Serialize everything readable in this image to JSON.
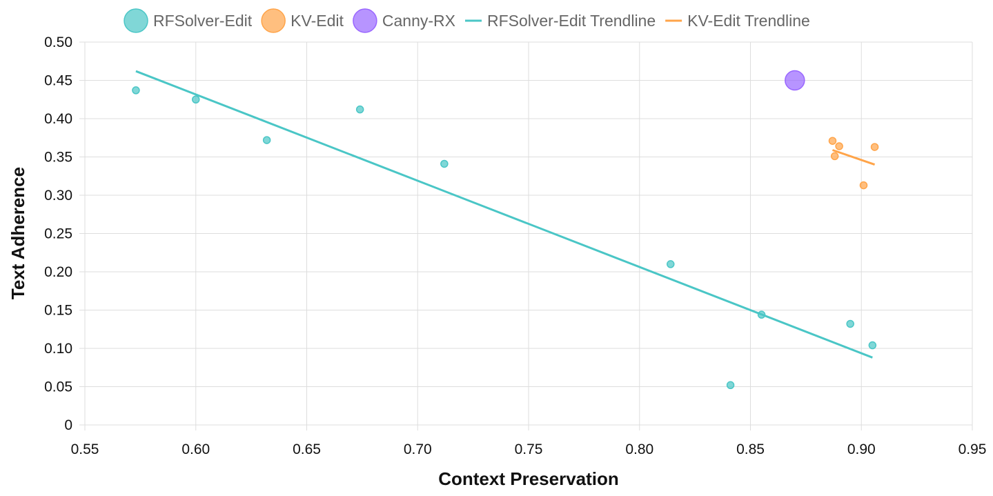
{
  "chart_data": {
    "type": "scatter",
    "xlabel": "Context Preservation",
    "ylabel": "Text Adherence",
    "xlim": [
      0.55,
      0.95
    ],
    "ylim": [
      0,
      0.5
    ],
    "x_ticks": [
      "0.55",
      "0.60",
      "0.65",
      "0.70",
      "0.75",
      "0.80",
      "0.85",
      "0.90",
      "0.95"
    ],
    "y_ticks": [
      "0",
      "0.05",
      "0.10",
      "0.15",
      "0.20",
      "0.25",
      "0.30",
      "0.35",
      "0.40",
      "0.45",
      "0.50"
    ],
    "grid": true,
    "legend_position": "top",
    "series": [
      {
        "name": "RFSolver-Edit",
        "kind": "points",
        "color": "#4ac6c6",
        "points": [
          {
            "x": 0.573,
            "y": 0.437
          },
          {
            "x": 0.6,
            "y": 0.425
          },
          {
            "x": 0.632,
            "y": 0.372
          },
          {
            "x": 0.674,
            "y": 0.412
          },
          {
            "x": 0.712,
            "y": 0.341
          },
          {
            "x": 0.814,
            "y": 0.21
          },
          {
            "x": 0.841,
            "y": 0.052
          },
          {
            "x": 0.855,
            "y": 0.144
          },
          {
            "x": 0.895,
            "y": 0.132
          },
          {
            "x": 0.905,
            "y": 0.104
          }
        ]
      },
      {
        "name": "KV-Edit",
        "kind": "points",
        "color": "#ffa449",
        "points": [
          {
            "x": 0.887,
            "y": 0.371
          },
          {
            "x": 0.89,
            "y": 0.364
          },
          {
            "x": 0.888,
            "y": 0.351
          },
          {
            "x": 0.906,
            "y": 0.363
          },
          {
            "x": 0.901,
            "y": 0.313
          }
        ]
      },
      {
        "name": "Canny-RX",
        "kind": "points",
        "color": "#9966ff",
        "large": true,
        "points": [
          {
            "x": 0.87,
            "y": 0.45
          }
        ]
      },
      {
        "name": "RFSolver-Edit Trendline",
        "kind": "line",
        "color": "#4ac6c6",
        "points": [
          {
            "x": 0.573,
            "y": 0.462
          },
          {
            "x": 0.905,
            "y": 0.088
          }
        ]
      },
      {
        "name": "KV-Edit Trendline",
        "kind": "line",
        "color": "#ffa449",
        "points": [
          {
            "x": 0.887,
            "y": 0.359
          },
          {
            "x": 0.906,
            "y": 0.34
          }
        ]
      }
    ]
  }
}
